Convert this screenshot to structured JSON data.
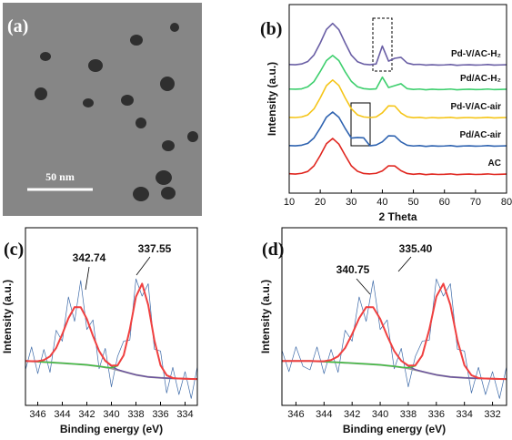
{
  "panel_a": {
    "label": "(a)",
    "scale_bar": "50 nm"
  },
  "chart_data": [
    {
      "type": "line",
      "panel_label": "(b)",
      "xlabel": "2 Theta",
      "ylabel": "Intensity (a.u.)",
      "xlim": [
        10,
        80
      ],
      "xticks": [
        10,
        20,
        30,
        40,
        50,
        60,
        70,
        80
      ],
      "ylim": [
        0,
        100
      ],
      "legend": "inline-right",
      "x": [
        10,
        12,
        14,
        16,
        18,
        20,
        22,
        24,
        26,
        28,
        30,
        32,
        34,
        36,
        38,
        40,
        42,
        44,
        46,
        48,
        50,
        52,
        54,
        56,
        58,
        60,
        62,
        64,
        66,
        68,
        70,
        72,
        74,
        76,
        78,
        80
      ],
      "series": [
        {
          "name": "Pd-V/AC-H₂",
          "color": "#6a5fa5",
          "values": [
            68.2,
            68.1,
            68.5,
            69.8,
            73.3,
            79.6,
            86.8,
            90,
            86.7,
            79.7,
            73.2,
            69.7,
            68.4,
            68.1,
            68.5,
            78,
            70,
            71.5,
            72,
            69,
            68.2,
            68.3,
            67.9,
            68.1,
            67.9,
            68,
            68.2,
            67.8,
            68,
            68.1,
            67.9,
            68,
            68.2,
            67.9,
            68,
            68.1
          ]
        },
        {
          "name": "Pd/AC-H₂",
          "color": "#3ecf6e",
          "values": [
            55.2,
            55.1,
            55.3,
            56.4,
            59.2,
            64.5,
            70.3,
            73,
            70.3,
            64.4,
            59.3,
            56.4,
            55.4,
            55.1,
            55.3,
            61.5,
            56,
            57,
            58,
            55.4,
            55,
            55.2,
            54.8,
            55.1,
            54.9,
            55,
            55.2,
            54.8,
            55,
            55.1,
            54.9,
            55,
            55.2,
            54.9,
            55,
            55.1
          ]
        },
        {
          "name": "Pd-V/AC-air",
          "color": "#f5c518",
          "values": [
            40.2,
            40.1,
            40.4,
            41.5,
            44.7,
            50.5,
            57,
            60,
            57.1,
            50.6,
            44.8,
            41.5,
            40.4,
            40.1,
            40.4,
            42.6,
            46.3,
            46.2,
            42.5,
            40.5,
            40,
            40.2,
            39.8,
            40.1,
            39.9,
            40,
            40.2,
            39.8,
            40,
            40.1,
            39.9,
            40,
            40.2,
            39.9,
            40,
            40.1
          ]
        },
        {
          "name": "Pd/AC-air",
          "color": "#2f63b0",
          "values": [
            25.2,
            25.1,
            25.4,
            26.4,
            29.3,
            34.5,
            40.3,
            43,
            40.2,
            34.4,
            29.2,
            29.5,
            29.3,
            25.1,
            25.5,
            27.2,
            30.4,
            30.3,
            27.2,
            25.4,
            25,
            25.2,
            24.8,
            25.1,
            24.9,
            25,
            25.2,
            24.8,
            25,
            25.1,
            24.9,
            25,
            25.2,
            24.9,
            25,
            25.1
          ]
        },
        {
          "name": "AC",
          "color": "#e0261f",
          "values": [
            10.3,
            10.1,
            10.5,
            11.5,
            14.5,
            20,
            26.2,
            29,
            26,
            20.1,
            14.5,
            11.6,
            10.4,
            10.2,
            10.5,
            11.8,
            14.5,
            14.4,
            11.9,
            10.4,
            10,
            10.3,
            9.8,
            10.1,
            9.9,
            10,
            10.2,
            9.8,
            10,
            10.1,
            9.9,
            10,
            10.2,
            9.9,
            10,
            10.1
          ]
        }
      ]
    },
    {
      "type": "line",
      "panel_label": "(c)",
      "xlabel": "Binding energy (eV)",
      "ylabel": "Intensity (a.u.)",
      "xlim": [
        347,
        333
      ],
      "xticks": [
        346,
        344,
        342,
        340,
        338,
        336,
        334
      ],
      "ylim": [
        0,
        100
      ],
      "annotations": [
        "342.74",
        "337.55"
      ],
      "x": [
        347,
        346.5,
        346,
        345.5,
        345,
        344.5,
        344,
        343.5,
        343,
        342.5,
        342,
        341.5,
        341,
        340.5,
        340,
        339.5,
        339,
        338.5,
        338,
        337.5,
        337,
        336.5,
        336,
        335.5,
        335,
        334.5,
        334,
        333.5,
        333
      ],
      "series": [
        {
          "color": "#3d6aa8",
          "values": [
            20,
            32.9,
            17.9,
            31.5,
            18.6,
            42.3,
            36.1,
            61.05,
            47.3,
            70.25,
            42.7,
            48.1,
            20.6,
            32.1,
            10.4,
            27.5,
            36.2,
            36.8,
            71.2,
            61.5,
            68.5,
            31.65,
            30.6,
            6.95,
            21.4,
            6.1,
            19,
            3.9,
            21.8
          ]
        },
        {
          "color": "#999999",
          "values": [
            25,
            24.8,
            24.6,
            24.4,
            24.2,
            24,
            23.8,
            23.55,
            23.3,
            23.05,
            22.8,
            22.4,
            22,
            21.4,
            20.8,
            19.9,
            19,
            18.1,
            17.2,
            16.6,
            16,
            15.75,
            15.5,
            15.35,
            15.2,
            15.1,
            15,
            14.9,
            14.8
          ]
        },
        {
          "color": "#6a4fa0",
          "values": [
            25,
            24.9,
            24.9,
            25.5,
            27.6,
            32.3,
            40.1,
            49.05,
            55.3,
            55.25,
            48.7,
            39.1,
            30.6,
            25,
            22,
            20.2,
            19.1,
            18.1,
            17.2,
            16.6,
            16,
            15.75,
            15.5,
            15.35,
            15.2,
            15.1,
            15,
            14.9,
            14.8
          ]
        },
        {
          "color": "#3cc23c",
          "values": [
            25,
            24.8,
            24.6,
            24.4,
            24.2,
            24,
            23.8,
            23.55,
            23.3,
            23.05,
            22.8,
            22.4,
            22,
            21.5,
            21.2,
            22.2,
            28.1,
            42.8,
            61.2,
            68.5,
            56.5,
            36.65,
            22.6,
            16.95,
            15.4,
            15.1,
            15,
            14.9,
            14.8
          ]
        },
        {
          "color": "#f04040",
          "values": [
            25,
            24.9,
            24.9,
            25.5,
            27.6,
            32.3,
            40.1,
            49.05,
            55.3,
            55.25,
            48.7,
            39.1,
            30.6,
            25.1,
            22.4,
            22.5,
            28.2,
            42.8,
            61.2,
            68.5,
            56.5,
            36.65,
            22.6,
            16.95,
            15.4,
            15.1,
            15,
            14.9,
            14.8
          ]
        }
      ]
    },
    {
      "type": "line",
      "panel_label": "(d)",
      "xlabel": "Binding energy (eV)",
      "ylabel": "Intensity (a.u.)",
      "xlim": [
        347,
        331
      ],
      "xticks": [
        346,
        344,
        342,
        340,
        338,
        336,
        334,
        332
      ],
      "ylim": [
        0,
        100
      ],
      "annotations": [
        "340.75",
        "335.40"
      ],
      "x": [
        347,
        346.5,
        346,
        345.5,
        345,
        344.5,
        344,
        343.5,
        343,
        342.5,
        342,
        341.5,
        341,
        340.5,
        340,
        339.5,
        339,
        338.5,
        338,
        337.5,
        337,
        336.5,
        336,
        335.5,
        335,
        334.5,
        334,
        333.5,
        333,
        332.5,
        332,
        331.5,
        331
      ],
      "series": [
        {
          "color": "#3d6aa8",
          "values": [
            31,
            19,
            33,
            22,
            20,
            32.9,
            17.9,
            31.5,
            18.6,
            42.3,
            36.1,
            61.05,
            47.3,
            70.25,
            42.7,
            48.1,
            20.6,
            32.1,
            10.4,
            27.5,
            36.2,
            36.8,
            71.2,
            61.5,
            68.5,
            31.65,
            30.6,
            6.95,
            21.4,
            6.1,
            19,
            3.9,
            21.8
          ]
        },
        {
          "color": "#999999",
          "values": [
            25,
            25,
            25,
            25,
            25,
            24.8,
            24.6,
            24.4,
            24.2,
            24,
            23.8,
            23.55,
            23.3,
            23.05,
            22.8,
            22.4,
            22,
            21.4,
            20.8,
            19.9,
            19,
            18.1,
            17.2,
            16.6,
            16,
            15.75,
            15.5,
            15.35,
            15.2,
            15.1,
            15,
            14.9,
            14.8
          ]
        },
        {
          "color": "#6a4fa0",
          "values": [
            25,
            25,
            25,
            25,
            25,
            24.9,
            24.9,
            25.5,
            27.6,
            32.3,
            40.1,
            49.05,
            55.3,
            55.25,
            48.7,
            39.1,
            30.6,
            25,
            22,
            20.2,
            19.1,
            18.1,
            17.2,
            16.6,
            16,
            15.75,
            15.5,
            15.35,
            15.2,
            15.1,
            15,
            14.9,
            14.8
          ]
        },
        {
          "color": "#3cc23c",
          "values": [
            25,
            25,
            25,
            25,
            25,
            24.8,
            24.6,
            24.4,
            24.2,
            24,
            23.8,
            23.55,
            23.3,
            23.05,
            22.8,
            22.4,
            22,
            21.5,
            21.2,
            22.2,
            28.1,
            42.8,
            61.2,
            68.5,
            56.5,
            36.65,
            22.6,
            16.95,
            15.4,
            15.1,
            15,
            14.9,
            14.8
          ]
        },
        {
          "color": "#f04040",
          "values": [
            25,
            25,
            25,
            25,
            25,
            24.9,
            24.9,
            25.5,
            27.6,
            32.3,
            40.1,
            49.05,
            55.3,
            55.25,
            48.7,
            39.1,
            30.6,
            25.1,
            22.4,
            22.5,
            28.2,
            42.8,
            61.2,
            68.5,
            56.5,
            36.65,
            22.6,
            16.95,
            15.4,
            15.1,
            15,
            14.9,
            14.8
          ]
        }
      ]
    }
  ]
}
